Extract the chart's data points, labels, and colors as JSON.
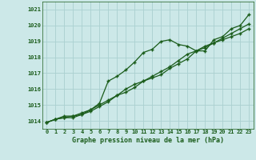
{
  "x": [
    0,
    1,
    2,
    3,
    4,
    5,
    6,
    7,
    8,
    9,
    10,
    11,
    12,
    13,
    14,
    15,
    16,
    17,
    18,
    19,
    20,
    21,
    22,
    23
  ],
  "line1": [
    1013.9,
    1014.1,
    1014.3,
    1014.3,
    1014.5,
    1014.7,
    1015.1,
    1016.5,
    1016.8,
    1017.2,
    1017.7,
    1018.3,
    1018.5,
    1019.0,
    1019.1,
    1018.8,
    1018.7,
    1018.4,
    1018.4,
    1019.1,
    1019.3,
    1019.8,
    1020.0,
    1020.7
  ],
  "line2": [
    1013.9,
    1014.1,
    1014.2,
    1014.2,
    1014.4,
    1014.6,
    1014.9,
    1015.2,
    1015.6,
    1015.8,
    1016.1,
    1016.5,
    1016.7,
    1016.9,
    1017.3,
    1017.6,
    1017.9,
    1018.4,
    1018.7,
    1018.9,
    1019.1,
    1019.3,
    1019.5,
    1019.8
  ],
  "line3": [
    1013.9,
    1014.1,
    1014.2,
    1014.3,
    1014.4,
    1014.7,
    1015.0,
    1015.3,
    1015.6,
    1016.0,
    1016.3,
    1016.5,
    1016.8,
    1017.1,
    1017.4,
    1017.8,
    1018.2,
    1018.4,
    1018.6,
    1018.9,
    1019.2,
    1019.5,
    1019.8,
    1020.1
  ],
  "bg_color": "#cce8e8",
  "grid_color": "#aad0d0",
  "line_color": "#1a5c1a",
  "ylabel_ticks": [
    1014,
    1015,
    1016,
    1017,
    1018,
    1019,
    1020,
    1021
  ],
  "xlabel": "Graphe pression niveau de la mer (hPa)",
  "ylim": [
    1013.5,
    1021.5
  ],
  "xlim": [
    -0.5,
    23.5
  ],
  "marker": "+"
}
